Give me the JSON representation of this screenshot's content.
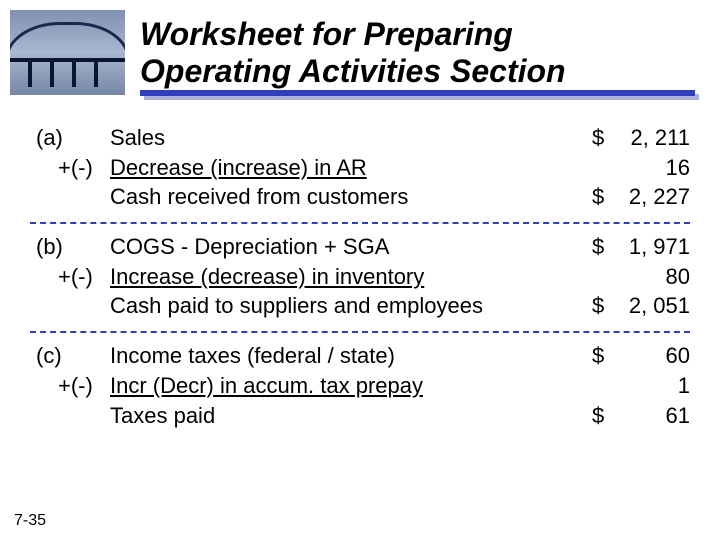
{
  "title_line1": "Worksheet for Preparing",
  "title_line2": "Operating Activities Section",
  "page_number": "7-35",
  "colors": {
    "accent": "#2f3fbc",
    "shadow": "#aab0d8",
    "text": "#000000",
    "background": "#ffffff"
  },
  "sections": [
    {
      "tag": "(a)",
      "modifier": "+(-)",
      "rows": [
        {
          "desc": "Sales",
          "underline_desc": false,
          "dollar": "$",
          "num": "2, 211",
          "underline_amt": false
        },
        {
          "desc": "Decrease (increase) in AR",
          "underline_desc": true,
          "dollar": "",
          "num": "16",
          "underline_amt": true
        },
        {
          "desc": "Cash received from customers",
          "underline_desc": false,
          "dollar": "$",
          "num": "2, 227",
          "underline_amt": false
        }
      ]
    },
    {
      "tag": "(b)",
      "modifier": "+(-)",
      "rows": [
        {
          "desc": "COGS - Depreciation + SGA",
          "underline_desc": false,
          "dollar": "$",
          "num": "1, 971",
          "underline_amt": false
        },
        {
          "desc": "Increase (decrease) in inventory",
          "underline_desc": true,
          "dollar": "",
          "num": "80",
          "underline_amt": true
        },
        {
          "desc": "Cash paid to suppliers and employees",
          "underline_desc": false,
          "dollar": "$",
          "num": "2, 051",
          "underline_amt": false
        }
      ]
    },
    {
      "tag": "(c)",
      "modifier": "+(-)",
      "rows": [
        {
          "desc": "Income taxes (federal / state)",
          "underline_desc": false,
          "dollar": "$",
          "num": "60",
          "underline_amt": false
        },
        {
          "desc": "Incr (Decr) in accum. tax prepay",
          "underline_desc": true,
          "dollar": "",
          "num": "1",
          "underline_amt": true
        },
        {
          "desc": "Taxes paid",
          "underline_desc": false,
          "dollar": "$",
          "num": "61",
          "underline_amt": false
        }
      ]
    }
  ]
}
